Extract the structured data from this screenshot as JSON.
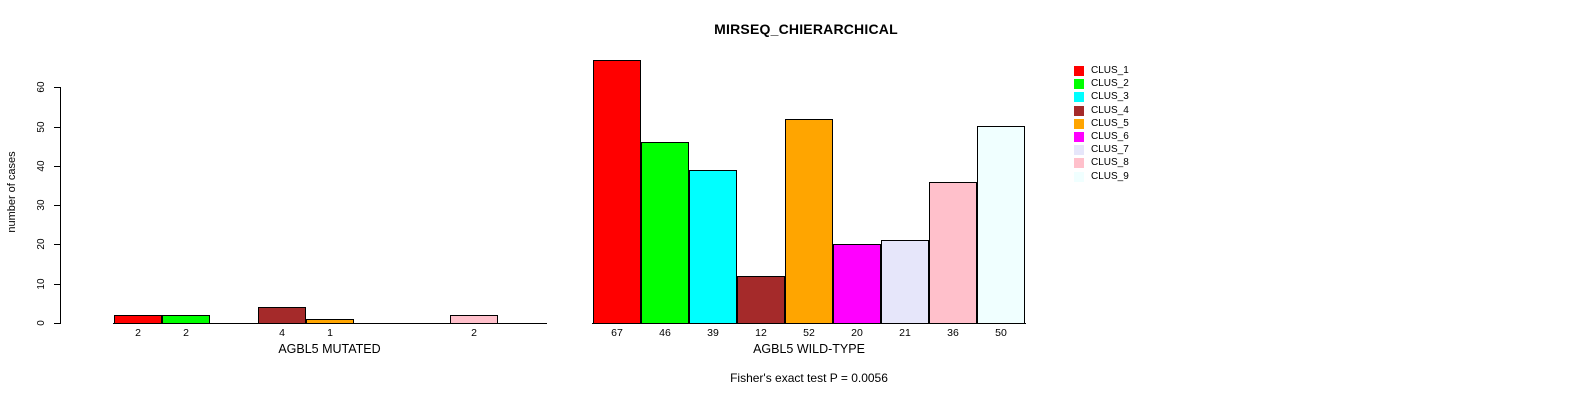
{
  "title": "MIRSEQ_CHIERARCHICAL",
  "y_axis": {
    "label": "number of cases",
    "ticks": [
      0,
      10,
      20,
      30,
      40,
      50,
      60
    ]
  },
  "footer": "Fisher's exact test P = 0.0056",
  "legend": {
    "entries": [
      {
        "label": "CLUS_1",
        "color": "#FF0000"
      },
      {
        "label": "CLUS_2",
        "color": "#00FF00"
      },
      {
        "label": "CLUS_3",
        "color": "#00FFFF"
      },
      {
        "label": "CLUS_4",
        "color": "#A52A2A"
      },
      {
        "label": "CLUS_5",
        "color": "#FFA500"
      },
      {
        "label": "CLUS_6",
        "color": "#FF00FF"
      },
      {
        "label": "CLUS_7",
        "color": "#E6E6FA"
      },
      {
        "label": "CLUS_8",
        "color": "#FFC0CB"
      },
      {
        "label": "CLUS_9",
        "color": "#F0FFFF"
      }
    ]
  },
  "chart_data": [
    {
      "type": "bar",
      "panel": "mutated",
      "xlabel": "AGBL5 MUTATED",
      "categories": [
        "CLUS_1",
        "CLUS_2",
        "CLUS_3",
        "CLUS_4",
        "CLUS_5",
        "CLUS_6",
        "CLUS_7",
        "CLUS_8",
        "CLUS_9"
      ],
      "values": [
        2,
        2,
        0,
        4,
        1,
        0,
        0,
        2,
        0
      ],
      "colors": [
        "#FF0000",
        "#00FF00",
        "#00FFFF",
        "#A52A2A",
        "#FFA500",
        "#FF00FF",
        "#E6E6FA",
        "#FFC0CB",
        "#F0FFFF"
      ],
      "ylim": [
        0,
        67
      ],
      "grid": false,
      "bar_labels_shown_for_nonzero_only": true
    },
    {
      "type": "bar",
      "panel": "wild-type",
      "xlabel": "AGBL5 WILD-TYPE",
      "categories": [
        "CLUS_1",
        "CLUS_2",
        "CLUS_3",
        "CLUS_4",
        "CLUS_5",
        "CLUS_6",
        "CLUS_7",
        "CLUS_8",
        "CLUS_9"
      ],
      "values": [
        67,
        46,
        39,
        12,
        52,
        20,
        21,
        36,
        50
      ],
      "colors": [
        "#FF0000",
        "#00FF00",
        "#00FFFF",
        "#A52A2A",
        "#FFA500",
        "#FF00FF",
        "#E6E6FA",
        "#FFC0CB",
        "#F0FFFF"
      ],
      "ylim": [
        0,
        67
      ],
      "grid": false,
      "bar_labels_shown_for_nonzero_only": true
    }
  ]
}
